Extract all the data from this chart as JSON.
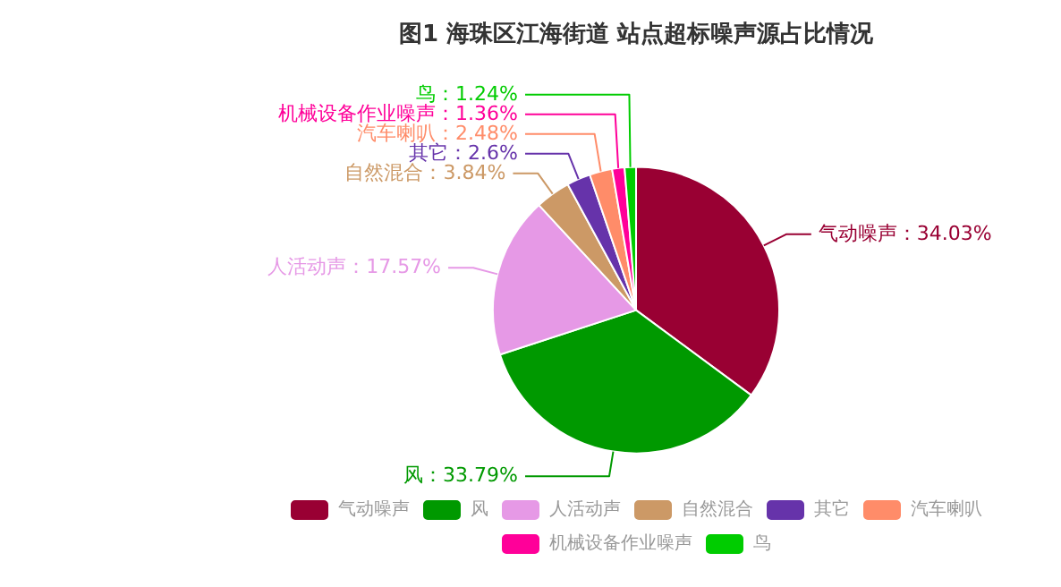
{
  "chart_data": {
    "type": "pie",
    "title": "图1 海珠区江海街道 站点超标噪声源占比情况",
    "categories": [
      "气动噪声",
      "风",
      "人活动声",
      "自然混合",
      "其它",
      "汽车喇叭",
      "机械设备作业噪声",
      "鸟"
    ],
    "values": [
      34.03,
      33.79,
      17.57,
      3.84,
      2.6,
      2.48,
      1.36,
      1.24
    ],
    "colors": [
      "#990033",
      "#009900",
      "#e699e6",
      "#cc9966",
      "#6633aa",
      "#ff8c69",
      "#ff0099",
      "#00cc00"
    ],
    "value_labels": [
      "气动噪声：34.03%",
      "风：33.79%",
      "人活动声：17.57%",
      "自然混合：3.84%",
      "其它：2.6%",
      "汽车喇叭：2.48%",
      "机械设备作业噪声：1.36%",
      "鸟：1.24%"
    ],
    "legend": "bottom"
  }
}
